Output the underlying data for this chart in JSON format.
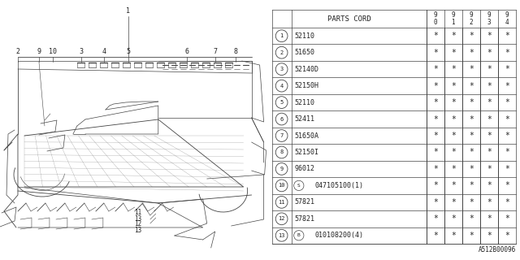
{
  "background_color": "#ffffff",
  "col_header": "PARTS CORD",
  "year_cols": [
    "9\n0",
    "9\n1",
    "9\n2",
    "9\n3",
    "9\n4"
  ],
  "rows": [
    {
      "num": "1",
      "part": "52110",
      "special": null
    },
    {
      "num": "2",
      "part": "51650",
      "special": null
    },
    {
      "num": "3",
      "part": "52140D",
      "special": null
    },
    {
      "num": "4",
      "part": "52150H",
      "special": null
    },
    {
      "num": "5",
      "part": "52110",
      "special": null
    },
    {
      "num": "6",
      "part": "52411",
      "special": null
    },
    {
      "num": "7",
      "part": "51650A",
      "special": null
    },
    {
      "num": "8",
      "part": "52150I",
      "special": null
    },
    {
      "num": "9",
      "part": "96012",
      "special": null
    },
    {
      "num": "10",
      "part": "047105100(1)",
      "special": "S"
    },
    {
      "num": "11",
      "part": "57821",
      "special": null
    },
    {
      "num": "12",
      "part": "57821",
      "special": null
    },
    {
      "num": "13",
      "part": "010108200(4)",
      "special": "B"
    }
  ],
  "star": "*",
  "diagram_ref": "A512B00096",
  "line_color": "#444444",
  "text_color": "#222222",
  "font_size_table": 6.0,
  "font_size_num": 5.0
}
